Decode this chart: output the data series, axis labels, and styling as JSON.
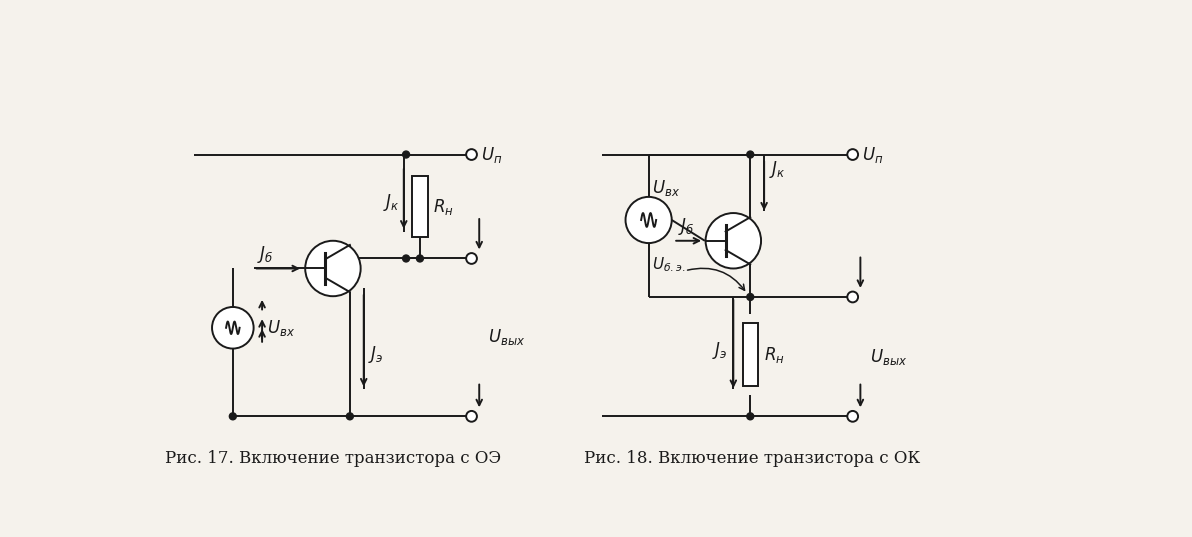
{
  "caption1": "Рис. 17. Включение транзистора с ОЭ",
  "caption2": "Рис. 18. Включение транзистора с ОК",
  "background_color": "#f5f2ec",
  "line_color": "#1a1a1a",
  "text_color": "#1a1a1a",
  "font_size_caption": 12,
  "font_size_label": 12
}
